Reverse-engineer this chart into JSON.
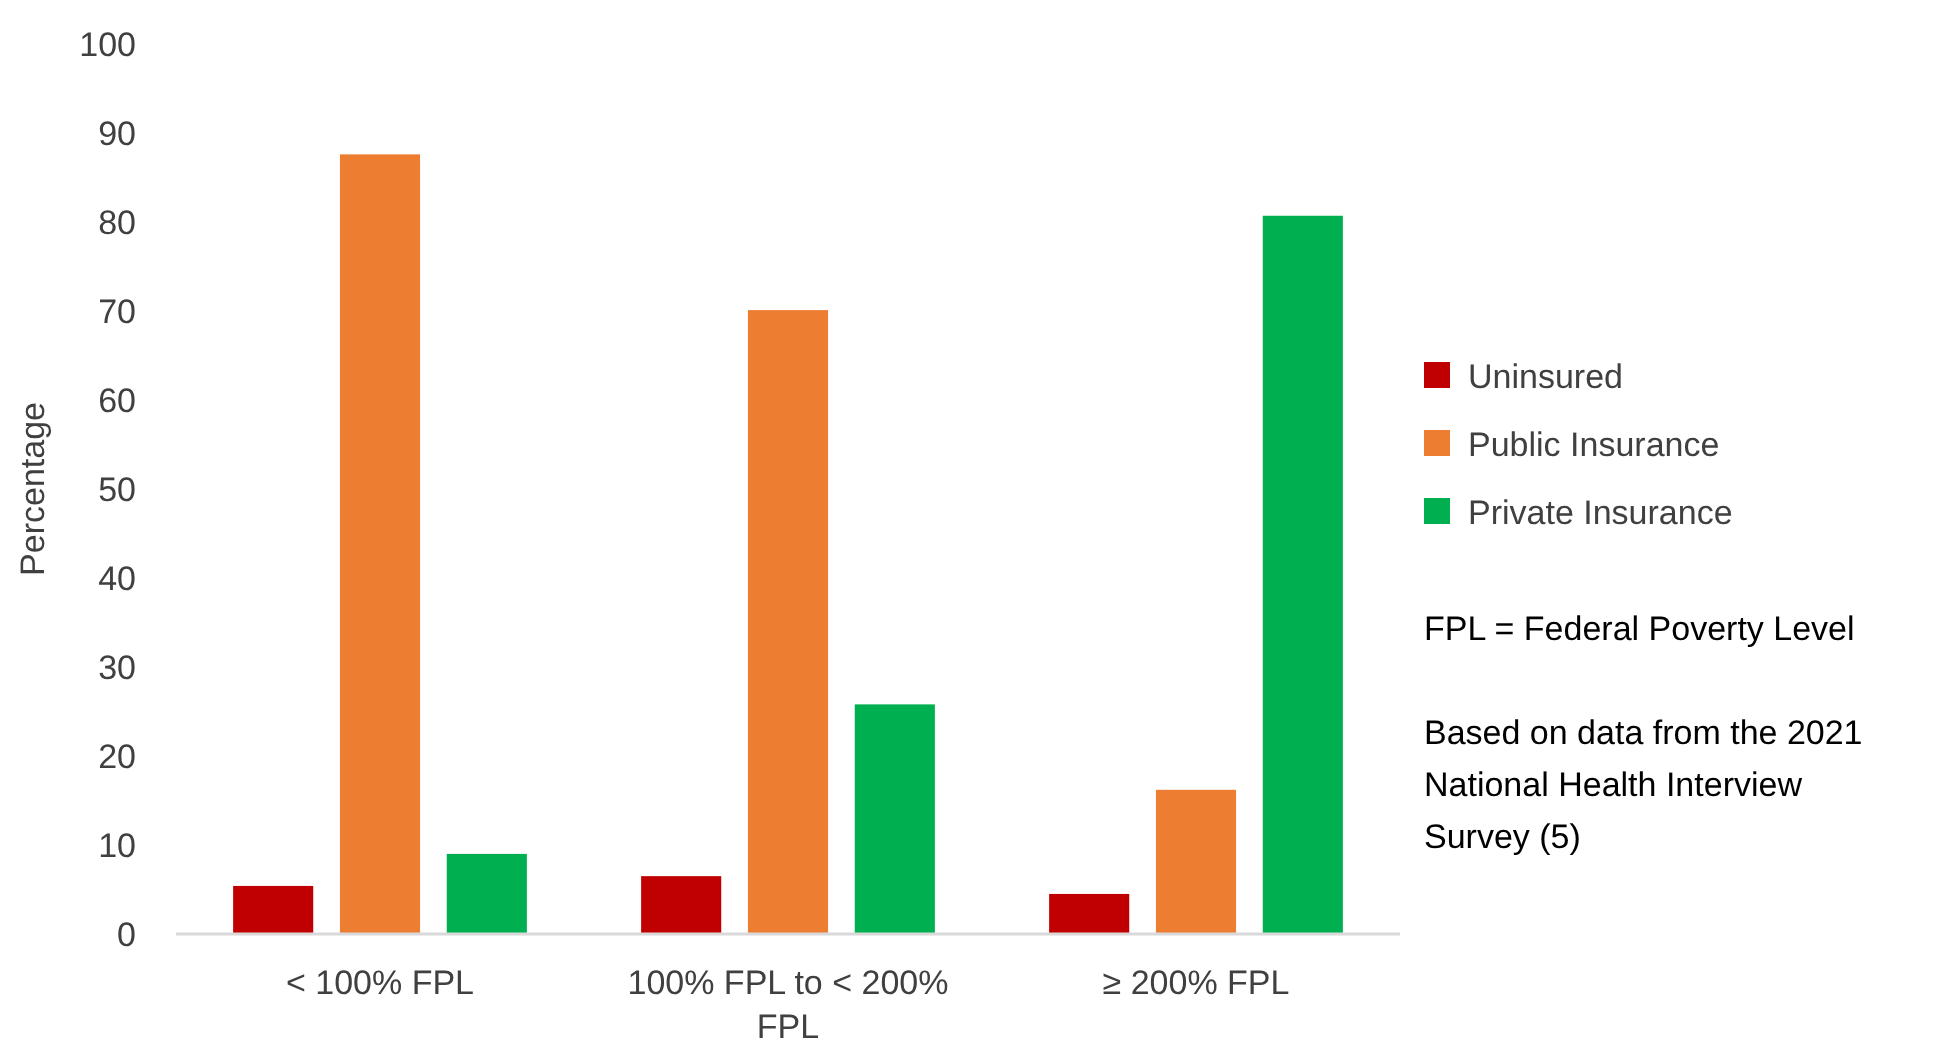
{
  "chart_data": {
    "type": "bar",
    "ylabel": "Percentage",
    "categories": [
      "< 100% FPL",
      "100% FPL to < 200% FPL",
      "≥ 200% FPL"
    ],
    "series": [
      {
        "name": "Uninsured",
        "color": "#c00000",
        "values": [
          5.4,
          6.5,
          4.5
        ]
      },
      {
        "name": "Public Insurance",
        "color": "#ed7d31",
        "values": [
          87.6,
          70.1,
          16.2
        ]
      },
      {
        "name": "Private Insurance",
        "color": "#00b050",
        "values": [
          9.0,
          25.8,
          80.7
        ]
      }
    ],
    "ylim": [
      0,
      100
    ],
    "yticks": [
      0,
      10,
      20,
      30,
      40,
      50,
      60,
      70,
      80,
      90,
      100
    ],
    "grid": false,
    "legend": "right",
    "annotations": [
      "FPL = Federal Poverty Level",
      "Based on data from the 2021 National Health Interview Survey (5)"
    ]
  }
}
